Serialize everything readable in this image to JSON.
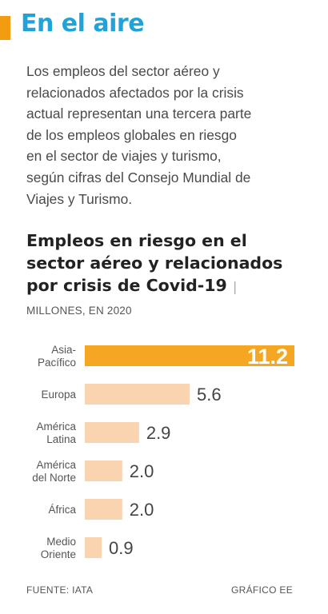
{
  "headline": "En el aire",
  "intro_lines": [
    "Los empleos del sector aéreo y",
    "relacionados afectados por la crisis",
    "actual representan una tercera parte",
    "de los empleos globales en riesgo",
    "en el sector de viajes y turismo,",
    "según cifras del Consejo Mundial de",
    "Viajes y Turismo."
  ],
  "chart_title_lines": [
    "Empleos en riesgo en el",
    "sector aéreo y relacionados",
    "por crisis de Covid-19"
  ],
  "chart_title_separator": "|",
  "units": "MILLONES, EN 2020",
  "source": "FUENTE: IATA",
  "credit": "GRÁFICO EE",
  "colors": {
    "accent": "#f39c12",
    "headline": "#1fa3d8",
    "bar_default": "#fad3b0",
    "bar_highlight": "#f5a623"
  },
  "chart_data": {
    "type": "bar",
    "orientation": "horizontal",
    "categories": [
      [
        "Asia-",
        "Pacífico"
      ],
      [
        "Europa"
      ],
      [
        "América",
        "Latina"
      ],
      [
        "América",
        "del Norte"
      ],
      [
        "África"
      ],
      [
        "Medio",
        "Oriente"
      ]
    ],
    "values": [
      11.2,
      5.6,
      2.9,
      2.0,
      2.0,
      0.9
    ],
    "value_labels": [
      "11.2",
      "5.6",
      "2.9",
      "2.0",
      "2.0",
      "0.9"
    ],
    "highlight_index": 0,
    "xlim": [
      0,
      11.2
    ]
  }
}
